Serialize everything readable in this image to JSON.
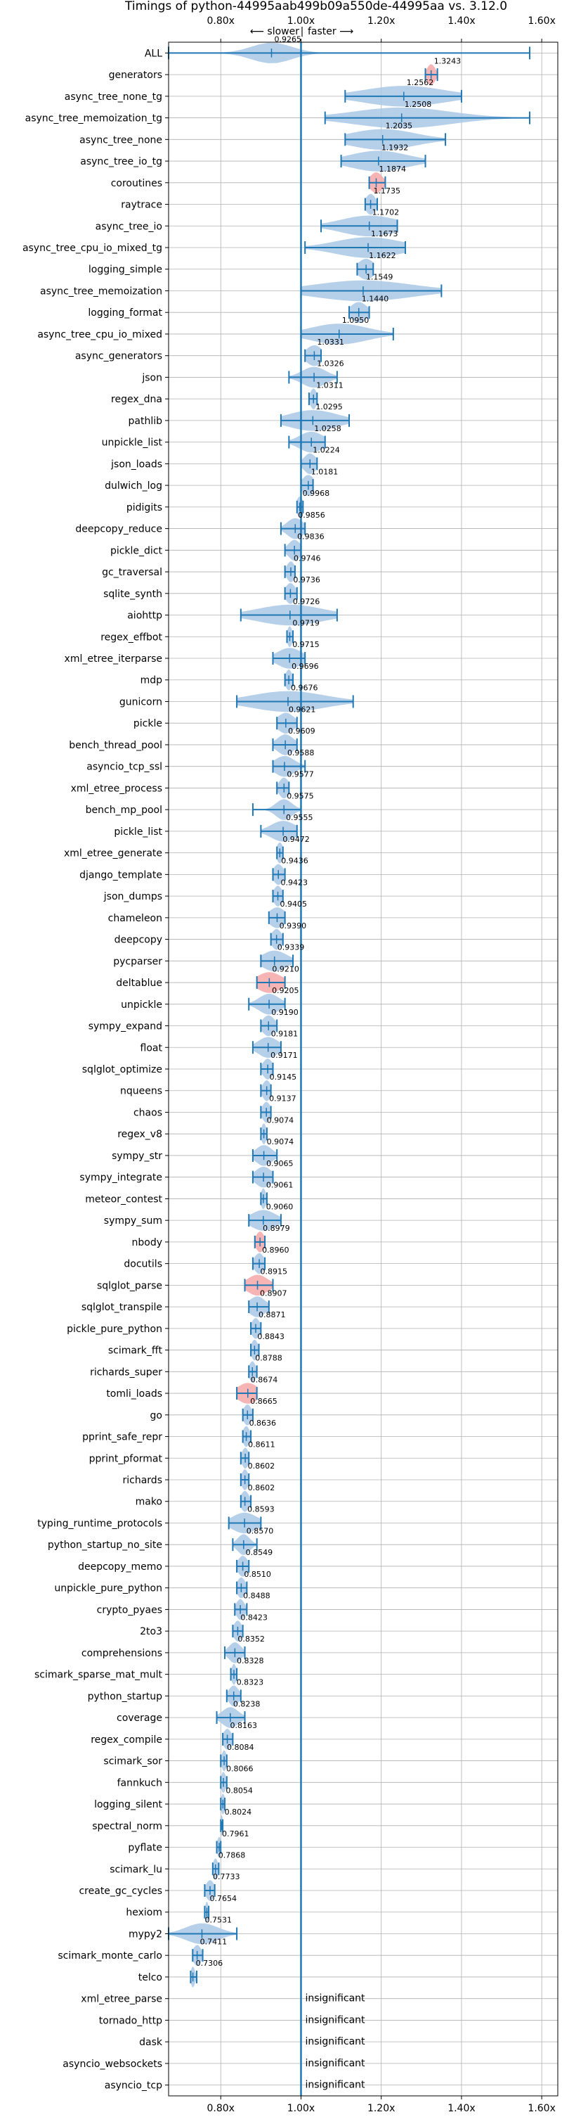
{
  "chart_data": {
    "type": "violin",
    "title": "Timings of python-44995aab499b09a550de-44995aa vs. 3.12.0",
    "direction": {
      "slower": "⟵ slower",
      "separator": "|",
      "faster": "faster ⟶"
    },
    "x_ticks": [
      0.8,
      1.0,
      1.2,
      1.4,
      1.6
    ],
    "x_tick_labels": [
      "0.80x",
      "1.00x",
      "1.20x",
      "1.40x",
      "1.60x"
    ],
    "xlim": [
      0.67,
      1.64
    ],
    "reference_value": 1.0,
    "insignificant_text": "insignificant",
    "colors": {
      "violin": "#aac8e6",
      "violin_regressed": "#f4a7a7",
      "line": "#1f77b4",
      "grid": "#b0b0b0",
      "reference": "#1f77b4"
    },
    "benchmarks": [
      {
        "name": "ALL",
        "mean": 0.9265,
        "label": "0.9265",
        "lo": 0.67,
        "hi": 1.57,
        "spread": 0.05
      },
      {
        "name": "generators",
        "mean": 1.3243,
        "label": "1.3243",
        "lo": 1.31,
        "hi": 1.34,
        "spread": 0.01,
        "regressed": true
      },
      {
        "name": "async_tree_none_tg",
        "mean": 1.2562,
        "label": "1.2562",
        "lo": 1.11,
        "hi": 1.4,
        "spread": 0.1
      },
      {
        "name": "async_tree_memoization_tg",
        "mean": 1.2508,
        "label": "1.2508",
        "lo": 1.06,
        "hi": 1.57,
        "spread": 0.12
      },
      {
        "name": "async_tree_none",
        "mean": 1.2035,
        "label": "1.2035",
        "lo": 1.11,
        "hi": 1.36,
        "spread": 0.08
      },
      {
        "name": "async_tree_io_tg",
        "mean": 1.1932,
        "label": "1.1932",
        "lo": 1.1,
        "hi": 1.31,
        "spread": 0.07
      },
      {
        "name": "coroutines",
        "mean": 1.1874,
        "label": "1.1874",
        "lo": 1.17,
        "hi": 1.21,
        "spread": 0.015,
        "regressed": true
      },
      {
        "name": "raytrace",
        "mean": 1.1735,
        "label": "1.1735",
        "lo": 1.16,
        "hi": 1.19,
        "spread": 0.012
      },
      {
        "name": "async_tree_io",
        "mean": 1.1702,
        "label": "1.1702",
        "lo": 1.05,
        "hi": 1.24,
        "spread": 0.07
      },
      {
        "name": "async_tree_cpu_io_mixed_tg",
        "mean": 1.1673,
        "label": "1.1673",
        "lo": 1.01,
        "hi": 1.26,
        "spread": 0.08
      },
      {
        "name": "logging_simple",
        "mean": 1.1622,
        "label": "1.1622",
        "lo": 1.14,
        "hi": 1.18,
        "spread": 0.02
      },
      {
        "name": "async_tree_memoization",
        "mean": 1.1549,
        "label": "1.1549",
        "lo": 1.0,
        "hi": 1.35,
        "spread": 0.12
      },
      {
        "name": "logging_format",
        "mean": 1.144,
        "label": "1.1440",
        "lo": 1.12,
        "hi": 1.17,
        "spread": 0.02
      },
      {
        "name": "async_tree_cpu_io_mixed",
        "mean": 1.095,
        "label": "1.0950",
        "lo": 1.0,
        "hi": 1.23,
        "spread": 0.07
      },
      {
        "name": "async_generators",
        "mean": 1.0331,
        "label": "1.0331",
        "lo": 1.01,
        "hi": 1.05,
        "spread": 0.02
      },
      {
        "name": "json",
        "mean": 1.0326,
        "label": "1.0326",
        "lo": 0.97,
        "hi": 1.09,
        "spread": 0.03
      },
      {
        "name": "regex_dna",
        "mean": 1.0311,
        "label": "1.0311",
        "lo": 1.02,
        "hi": 1.04,
        "spread": 0.008
      },
      {
        "name": "pathlib",
        "mean": 1.0295,
        "label": "1.0295",
        "lo": 0.95,
        "hi": 1.12,
        "spread": 0.06
      },
      {
        "name": "unpickle_list",
        "mean": 1.0258,
        "label": "1.0258",
        "lo": 0.97,
        "hi": 1.06,
        "spread": 0.03
      },
      {
        "name": "json_loads",
        "mean": 1.0224,
        "label": "1.0224",
        "lo": 1.0,
        "hi": 1.04,
        "spread": 0.015
      },
      {
        "name": "dulwich_log",
        "mean": 1.0181,
        "label": "1.0181",
        "lo": 1.0,
        "hi": 1.03,
        "spread": 0.015
      },
      {
        "name": "pidigits",
        "mean": 0.9968,
        "label": "0.9968",
        "lo": 0.99,
        "hi": 1.005,
        "spread": 0.008
      },
      {
        "name": "deepcopy_reduce",
        "mean": 0.9856,
        "label": "0.9856",
        "lo": 0.95,
        "hi": 1.01,
        "spread": 0.02
      },
      {
        "name": "pickle_dict",
        "mean": 0.9836,
        "label": "0.9836",
        "lo": 0.96,
        "hi": 1.0,
        "spread": 0.015
      },
      {
        "name": "gc_traversal",
        "mean": 0.9746,
        "label": "0.9746",
        "lo": 0.96,
        "hi": 0.985,
        "spread": 0.01
      },
      {
        "name": "sqlite_synth",
        "mean": 0.9736,
        "label": "0.9736",
        "lo": 0.96,
        "hi": 0.99,
        "spread": 0.012
      },
      {
        "name": "aiohttp",
        "mean": 0.9726,
        "label": "0.9726",
        "lo": 0.85,
        "hi": 1.09,
        "spread": 0.08
      },
      {
        "name": "regex_effbot",
        "mean": 0.9719,
        "label": "0.9719",
        "lo": 0.965,
        "hi": 0.98,
        "spread": 0.006
      },
      {
        "name": "xml_etree_iterparse",
        "mean": 0.9715,
        "label": "0.9715",
        "lo": 0.93,
        "hi": 1.01,
        "spread": 0.03
      },
      {
        "name": "mdp",
        "mean": 0.9696,
        "label": "0.9696",
        "lo": 0.96,
        "hi": 0.98,
        "spread": 0.008
      },
      {
        "name": "gunicorn",
        "mean": 0.9676,
        "label": "0.9676",
        "lo": 0.84,
        "hi": 1.13,
        "spread": 0.09
      },
      {
        "name": "pickle",
        "mean": 0.9621,
        "label": "0.9621",
        "lo": 0.94,
        "hi": 0.99,
        "spread": 0.02
      },
      {
        "name": "bench_thread_pool",
        "mean": 0.9609,
        "label": "0.9609",
        "lo": 0.93,
        "hi": 0.99,
        "spread": 0.02
      },
      {
        "name": "asyncio_tcp_ssl",
        "mean": 0.9588,
        "label": "0.9588",
        "lo": 0.93,
        "hi": 1.01,
        "spread": 0.025
      },
      {
        "name": "xml_etree_process",
        "mean": 0.9577,
        "label": "0.9577",
        "lo": 0.94,
        "hi": 0.97,
        "spread": 0.012
      },
      {
        "name": "bench_mp_pool",
        "mean": 0.9575,
        "label": "0.9575",
        "lo": 0.88,
        "hi": 1.0,
        "spread": 0.02
      },
      {
        "name": "pickle_list",
        "mean": 0.9555,
        "label": "0.9555",
        "lo": 0.9,
        "hi": 0.99,
        "spread": 0.03
      },
      {
        "name": "xml_etree_generate",
        "mean": 0.9472,
        "label": "0.9472",
        "lo": 0.94,
        "hi": 0.955,
        "spread": 0.008
      },
      {
        "name": "django_template",
        "mean": 0.9436,
        "label": "0.9436",
        "lo": 0.93,
        "hi": 0.96,
        "spread": 0.012
      },
      {
        "name": "json_dumps",
        "mean": 0.9423,
        "label": "0.9423",
        "lo": 0.93,
        "hi": 0.955,
        "spread": 0.01
      },
      {
        "name": "chameleon",
        "mean": 0.9405,
        "label": "0.9405",
        "lo": 0.92,
        "hi": 0.96,
        "spread": 0.02
      },
      {
        "name": "deepcopy",
        "mean": 0.939,
        "label": "0.9390",
        "lo": 0.925,
        "hi": 0.955,
        "spread": 0.012
      },
      {
        "name": "pycparser",
        "mean": 0.9339,
        "label": "0.9339",
        "lo": 0.9,
        "hi": 0.98,
        "spread": 0.03
      },
      {
        "name": "deltablue",
        "mean": 0.921,
        "label": "0.9210",
        "lo": 0.89,
        "hi": 0.96,
        "spread": 0.03,
        "regressed": true
      },
      {
        "name": "unpickle",
        "mean": 0.9205,
        "label": "0.9205",
        "lo": 0.87,
        "hi": 0.96,
        "spread": 0.025
      },
      {
        "name": "sympy_expand",
        "mean": 0.919,
        "label": "0.9190",
        "lo": 0.9,
        "hi": 0.94,
        "spread": 0.015
      },
      {
        "name": "float",
        "mean": 0.9181,
        "label": "0.9181",
        "lo": 0.88,
        "hi": 0.95,
        "spread": 0.025
      },
      {
        "name": "sqlglot_optimize",
        "mean": 0.9171,
        "label": "0.9171",
        "lo": 0.9,
        "hi": 0.93,
        "spread": 0.012
      },
      {
        "name": "nqueens",
        "mean": 0.9145,
        "label": "0.9145",
        "lo": 0.9,
        "hi": 0.925,
        "spread": 0.01
      },
      {
        "name": "chaos",
        "mean": 0.9137,
        "label": "0.9137",
        "lo": 0.9,
        "hi": 0.925,
        "spread": 0.01
      },
      {
        "name": "regex_v8",
        "mean": 0.9074,
        "label": "0.9074",
        "lo": 0.9,
        "hi": 0.915,
        "spread": 0.006
      },
      {
        "name": "sympy_str",
        "mean": 0.9074,
        "label": "0.9074",
        "lo": 0.88,
        "hi": 0.94,
        "spread": 0.02
      },
      {
        "name": "sympy_integrate",
        "mean": 0.9065,
        "label": "0.9065",
        "lo": 0.88,
        "hi": 0.93,
        "spread": 0.02
      },
      {
        "name": "meteor_contest",
        "mean": 0.9061,
        "label": "0.9061",
        "lo": 0.9,
        "hi": 0.915,
        "spread": 0.006
      },
      {
        "name": "sympy_sum",
        "mean": 0.906,
        "label": "0.9060",
        "lo": 0.87,
        "hi": 0.95,
        "spread": 0.03
      },
      {
        "name": "nbody",
        "mean": 0.8979,
        "label": "0.8979",
        "lo": 0.885,
        "hi": 0.91,
        "spread": 0.01,
        "regressed": true
      },
      {
        "name": "docutils",
        "mean": 0.896,
        "label": "0.8960",
        "lo": 0.88,
        "hi": 0.91,
        "spread": 0.012
      },
      {
        "name": "sqlglot_parse",
        "mean": 0.8915,
        "label": "0.8915",
        "lo": 0.86,
        "hi": 0.93,
        "spread": 0.025,
        "regressed": true
      },
      {
        "name": "sqlglot_transpile",
        "mean": 0.8907,
        "label": "0.8907",
        "lo": 0.87,
        "hi": 0.92,
        "spread": 0.02
      },
      {
        "name": "pickle_pure_python",
        "mean": 0.8871,
        "label": "0.8871",
        "lo": 0.875,
        "hi": 0.9,
        "spread": 0.01
      },
      {
        "name": "scimark_fft",
        "mean": 0.8843,
        "label": "0.8843",
        "lo": 0.875,
        "hi": 0.895,
        "spread": 0.008
      },
      {
        "name": "richards_super",
        "mean": 0.8788,
        "label": "0.8788",
        "lo": 0.87,
        "hi": 0.89,
        "spread": 0.008
      },
      {
        "name": "tomli_loads",
        "mean": 0.8674,
        "label": "0.8674",
        "lo": 0.84,
        "hi": 0.89,
        "spread": 0.025,
        "regressed": true
      },
      {
        "name": "go",
        "mean": 0.8665,
        "label": "0.8665",
        "lo": 0.855,
        "hi": 0.88,
        "spread": 0.01
      },
      {
        "name": "pprint_safe_repr",
        "mean": 0.8636,
        "label": "0.8636",
        "lo": 0.855,
        "hi": 0.875,
        "spread": 0.008
      },
      {
        "name": "pprint_pformat",
        "mean": 0.8611,
        "label": "0.8611",
        "lo": 0.85,
        "hi": 0.87,
        "spread": 0.008
      },
      {
        "name": "richards",
        "mean": 0.8602,
        "label": "0.8602",
        "lo": 0.85,
        "hi": 0.87,
        "spread": 0.008
      },
      {
        "name": "mako",
        "mean": 0.8602,
        "label": "0.8602",
        "lo": 0.85,
        "hi": 0.875,
        "spread": 0.01
      },
      {
        "name": "typing_runtime_protocols",
        "mean": 0.8593,
        "label": "0.8593",
        "lo": 0.82,
        "hi": 0.9,
        "spread": 0.03
      },
      {
        "name": "python_startup_no_site",
        "mean": 0.857,
        "label": "0.8570",
        "lo": 0.83,
        "hi": 0.89,
        "spread": 0.015
      },
      {
        "name": "deepcopy_memo",
        "mean": 0.8549,
        "label": "0.8549",
        "lo": 0.84,
        "hi": 0.87,
        "spread": 0.012
      },
      {
        "name": "unpickle_pure_python",
        "mean": 0.851,
        "label": "0.8510",
        "lo": 0.84,
        "hi": 0.865,
        "spread": 0.01
      },
      {
        "name": "crypto_pyaes",
        "mean": 0.8488,
        "label": "0.8488",
        "lo": 0.835,
        "hi": 0.865,
        "spread": 0.01
      },
      {
        "name": "2to3",
        "mean": 0.8423,
        "label": "0.8423",
        "lo": 0.83,
        "hi": 0.855,
        "spread": 0.01
      },
      {
        "name": "comprehensions",
        "mean": 0.8352,
        "label": "0.8352",
        "lo": 0.81,
        "hi": 0.86,
        "spread": 0.015
      },
      {
        "name": "scimark_sparse_mat_mult",
        "mean": 0.8328,
        "label": "0.8328",
        "lo": 0.825,
        "hi": 0.84,
        "spread": 0.006
      },
      {
        "name": "python_startup",
        "mean": 0.8323,
        "label": "0.8323",
        "lo": 0.815,
        "hi": 0.85,
        "spread": 0.012
      },
      {
        "name": "coverage",
        "mean": 0.8238,
        "label": "0.8238",
        "lo": 0.79,
        "hi": 0.86,
        "spread": 0.02
      },
      {
        "name": "regex_compile",
        "mean": 0.8163,
        "label": "0.8163",
        "lo": 0.805,
        "hi": 0.83,
        "spread": 0.01
      },
      {
        "name": "scimark_sor",
        "mean": 0.8084,
        "label": "0.8084",
        "lo": 0.8,
        "hi": 0.815,
        "spread": 0.006
      },
      {
        "name": "fannkuch",
        "mean": 0.8066,
        "label": "0.8066",
        "lo": 0.8,
        "hi": 0.815,
        "spread": 0.006
      },
      {
        "name": "logging_silent",
        "mean": 0.8054,
        "label": "0.8054",
        "lo": 0.8,
        "hi": 0.81,
        "spread": 0.005
      },
      {
        "name": "spectral_norm",
        "mean": 0.8024,
        "label": "0.8024",
        "lo": 0.8,
        "hi": 0.805,
        "spread": 0.003
      },
      {
        "name": "pyflate",
        "mean": 0.7961,
        "label": "0.7961",
        "lo": 0.79,
        "hi": 0.8,
        "spread": 0.005
      },
      {
        "name": "scimark_lu",
        "mean": 0.7868,
        "label": "0.7868",
        "lo": 0.78,
        "hi": 0.795,
        "spread": 0.006
      },
      {
        "name": "create_gc_cycles",
        "mean": 0.7733,
        "label": "0.7733",
        "lo": 0.76,
        "hi": 0.785,
        "spread": 0.01
      },
      {
        "name": "hexiom",
        "mean": 0.7654,
        "label": "0.7654",
        "lo": 0.76,
        "hi": 0.77,
        "spread": 0.004
      },
      {
        "name": "mypy2",
        "mean": 0.7531,
        "label": "0.7531",
        "lo": 0.67,
        "hi": 0.84,
        "spread": 0.04
      },
      {
        "name": "scimark_monte_carlo",
        "mean": 0.7411,
        "label": "0.7411",
        "lo": 0.73,
        "hi": 0.755,
        "spread": 0.01
      },
      {
        "name": "telco",
        "mean": 0.7306,
        "label": "0.7306",
        "lo": 0.725,
        "hi": 0.74,
        "spread": 0.005
      },
      {
        "name": "xml_etree_parse",
        "insignificant": true
      },
      {
        "name": "tornado_http",
        "insignificant": true
      },
      {
        "name": "dask",
        "insignificant": true
      },
      {
        "name": "asyncio_websockets",
        "insignificant": true
      },
      {
        "name": "asyncio_tcp",
        "insignificant": true
      }
    ]
  }
}
